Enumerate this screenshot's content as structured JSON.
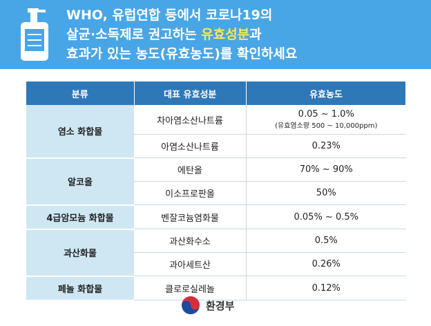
{
  "header": {
    "title_lines": [
      [
        "WHO, 유럽연합 등에서 코로나19의"
      ],
      [
        "살균·소독제로 권고하는 ",
        "유효성분",
        "과"
      ],
      [
        "효과가 있는 농도(유효농도)를 확인하세요"
      ]
    ]
  },
  "table": {
    "columns": [
      "분류",
      "대표 유효성분",
      "유효농도"
    ],
    "groups": [
      {
        "name": "염소 화합물",
        "rows": [
          {
            "ingredient": "차아염소산나트륨",
            "concentration": "0.05 ~ 1.0%",
            "note": "(유효염소량 500 ~ 10,000ppm)"
          },
          {
            "ingredient": "아염소산나트륨",
            "concentration": "0.23%"
          }
        ]
      },
      {
        "name": "알코올",
        "rows": [
          {
            "ingredient": "에탄올",
            "concentration": "70% ~ 90%"
          },
          {
            "ingredient": "이소프로판올",
            "concentration": "50%"
          }
        ]
      },
      {
        "name": "4급암모늄 화합물",
        "rows": [
          {
            "ingredient": "벤잘코늄염화물",
            "concentration": "0.05% ~ 0.5%"
          }
        ]
      },
      {
        "name": "과산화물",
        "rows": [
          {
            "ingredient": "과산화수소",
            "concentration": "0.5%"
          },
          {
            "ingredient": "과아세트산",
            "concentration": "0.26%"
          }
        ]
      },
      {
        "name": "페놀 화합물",
        "rows": [
          {
            "ingredient": "클로로실레놀",
            "concentration": "0.12%"
          }
        ]
      }
    ]
  },
  "footer": {
    "org": "환경부"
  }
}
